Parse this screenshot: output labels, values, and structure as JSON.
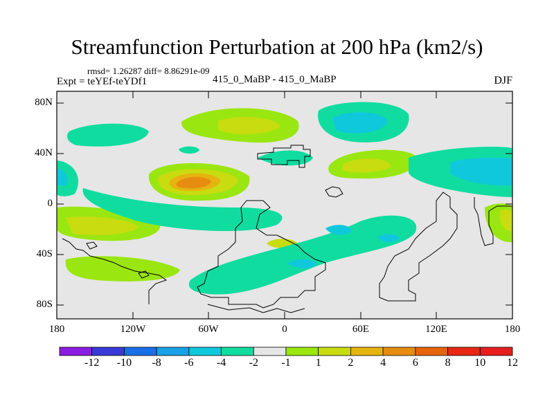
{
  "title": "Streamfunction Perturbation at 200 hPa (km2/s)",
  "stats": "rmsd= 1.26287  diff= 8.86291e-09",
  "experiment": "Expt = teYEf-teYDf1",
  "subtitle": "415_0_MaBP - 415_0_MaBP",
  "season": "DJF",
  "lat_labels": [
    "80N",
    "40N",
    "0",
    "40S",
    "80S"
  ],
  "lon_labels": [
    "180",
    "120W",
    "60W",
    "0",
    "60E",
    "120E",
    "180"
  ],
  "colorbar": {
    "labels": [
      "-12",
      "-10",
      "-8",
      "-6",
      "-4",
      "-2",
      "-1",
      "1",
      "2",
      "4",
      "6",
      "8",
      "10",
      "12"
    ],
    "colors": [
      "#8a1ee0",
      "#3a3ad8",
      "#1a6ee6",
      "#1aa0e6",
      "#10c8dc",
      "#10dca0",
      "#e6e6e6",
      "#9ae610",
      "#c8dc10",
      "#e6b410",
      "#e68c10",
      "#e6640a",
      "#e62814",
      "#e61e1e"
    ]
  },
  "colors": {
    "background": "#e6e6e6",
    "frame": "#000000"
  }
}
